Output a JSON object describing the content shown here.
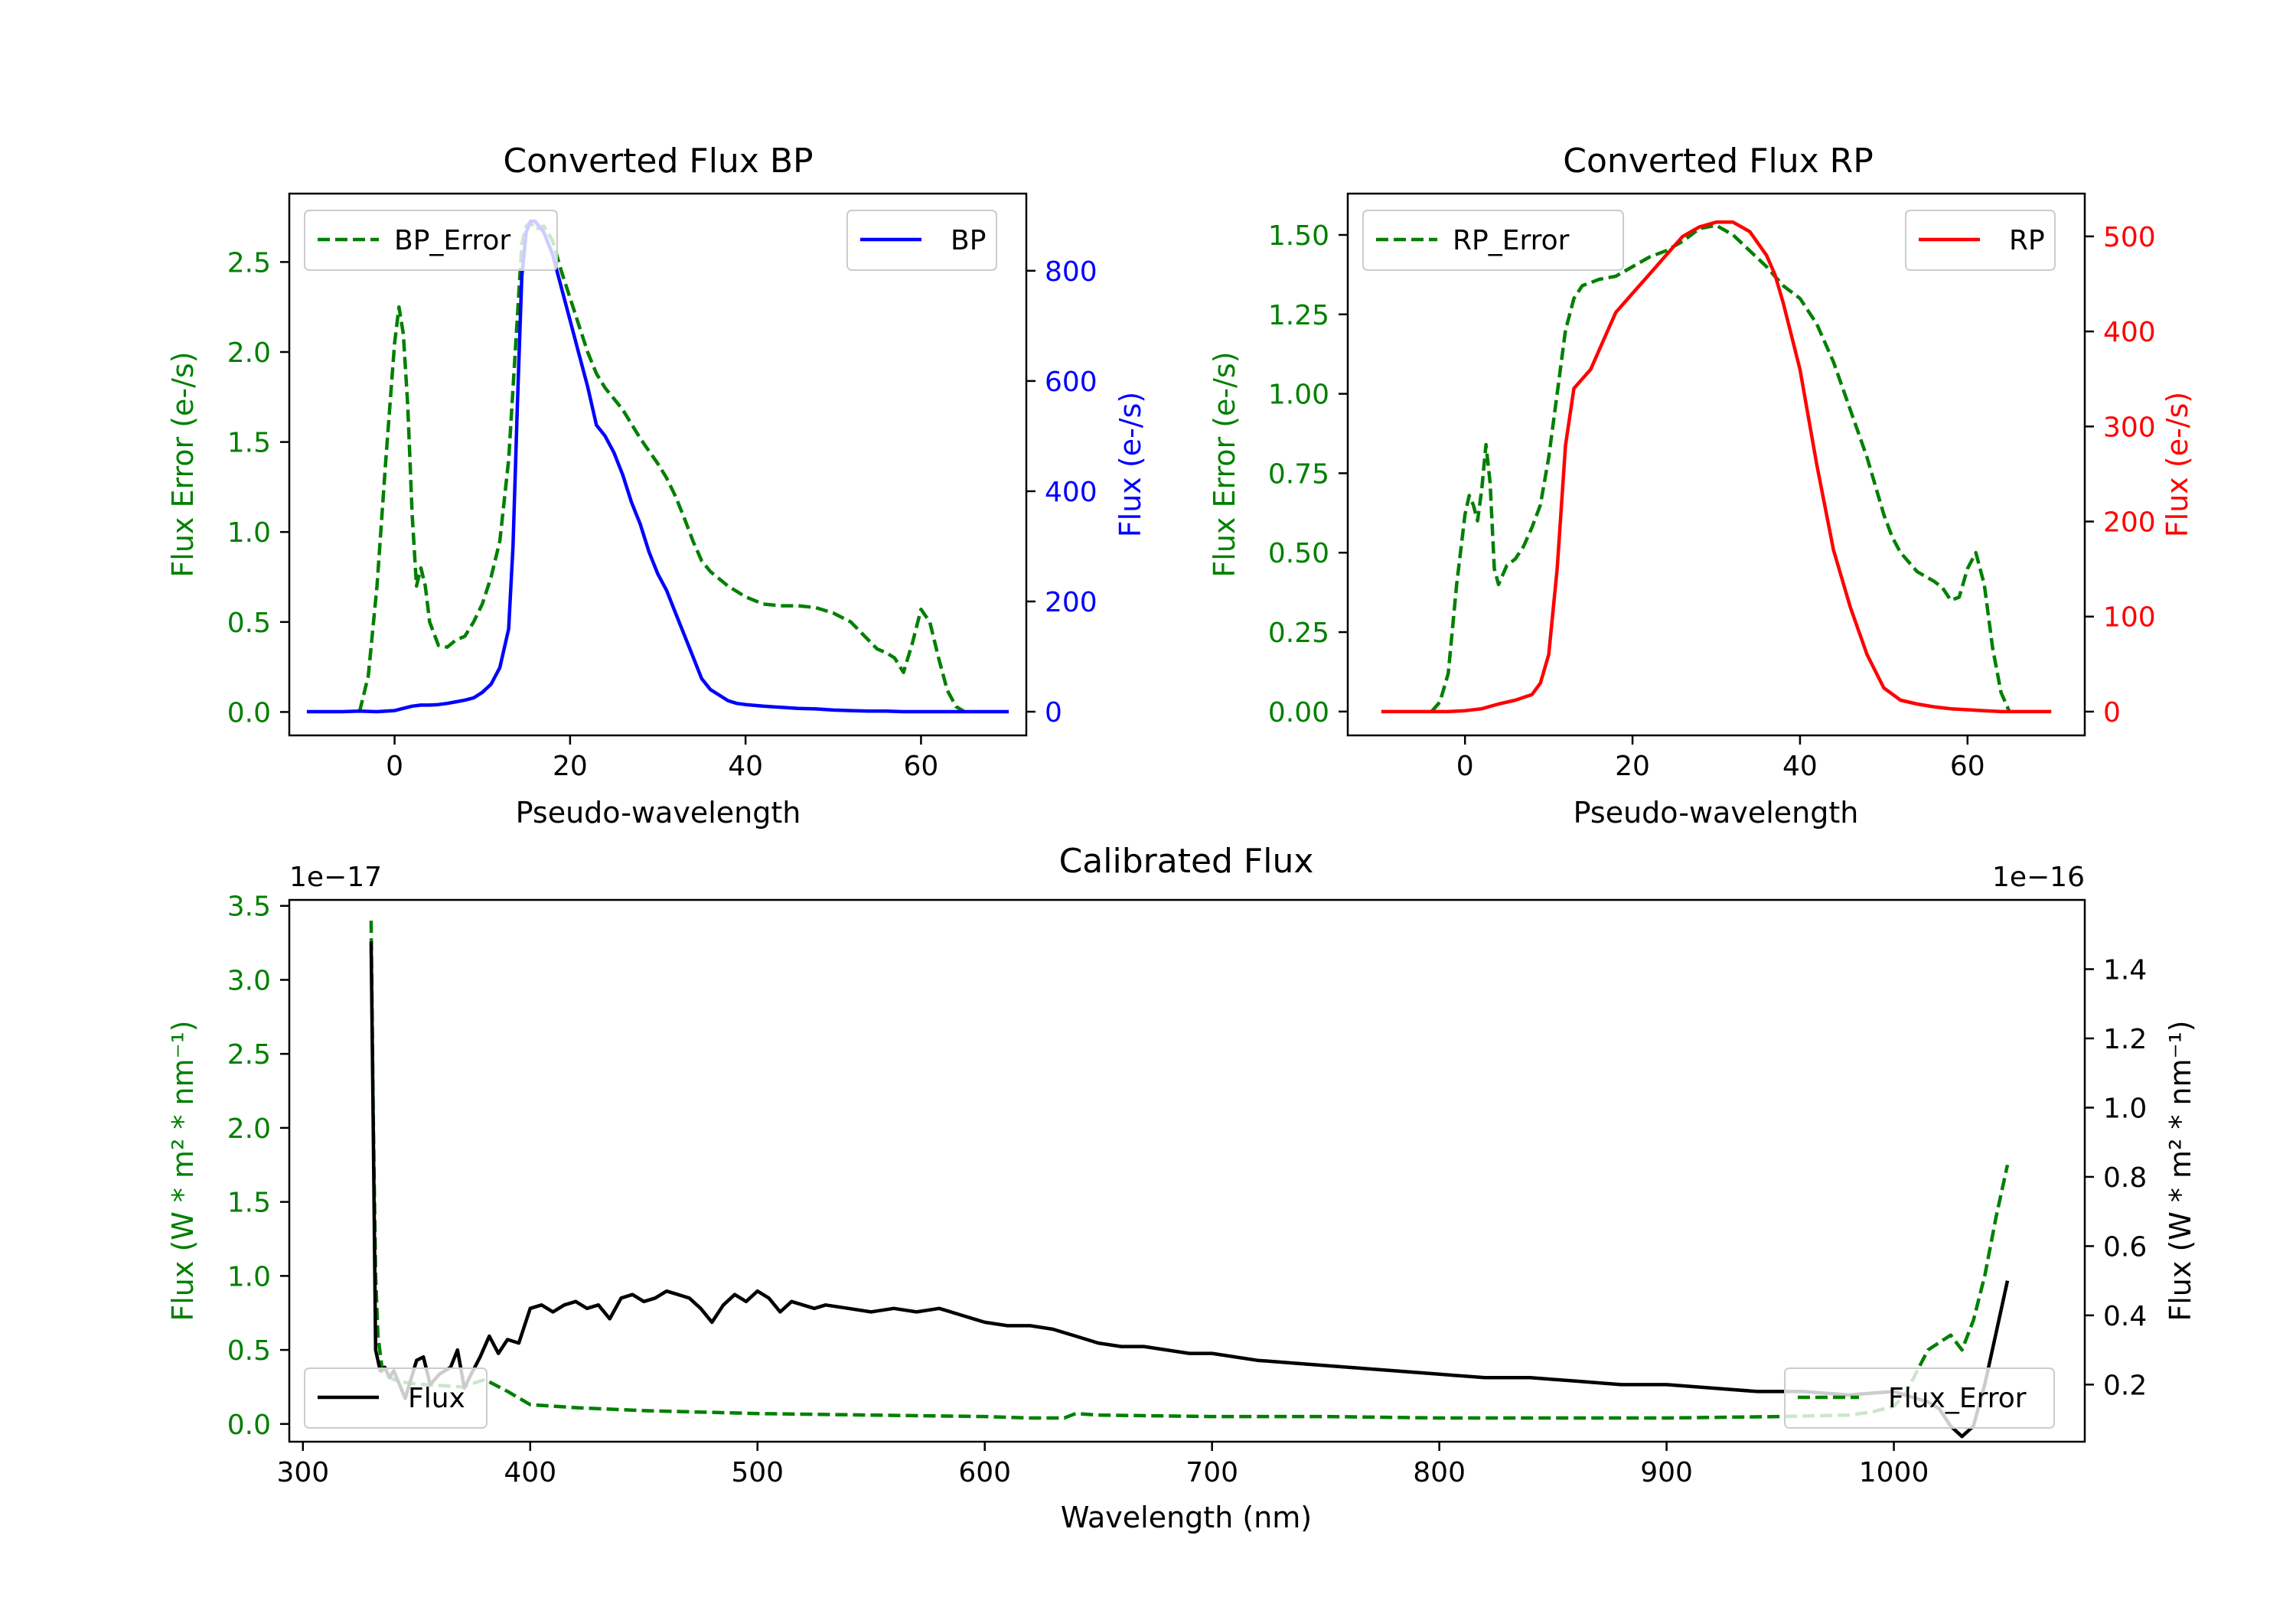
{
  "colors": {
    "error": "#008000",
    "bp": "#0000ff",
    "rp": "#ff0000",
    "flux": "#000000",
    "axis": "#000000",
    "background": "#ffffff"
  },
  "chart_data": [
    {
      "id": "bp",
      "type": "line",
      "title": "Converted Flux BP",
      "xlabel": "Pseudo-wavelength",
      "ylabel_left": "Flux Error (e-/s)",
      "ylabel_right": "Flux (e-/s)",
      "xlim": [
        -12,
        72
      ],
      "ylim_left": [
        -0.13,
        2.88
      ],
      "ylim_right": [
        -43,
        940
      ],
      "xticks": [
        0,
        20,
        40,
        60
      ],
      "xtick_labels": [
        "0",
        "20",
        "40",
        "60"
      ],
      "yticks_left": [
        0,
        0.5,
        1,
        1.5,
        2,
        2.5
      ],
      "ytick_labels_left": [
        "0.0",
        "0.5",
        "1.0",
        "1.5",
        "2.0",
        "2.5"
      ],
      "yticks_right": [
        0,
        200,
        400,
        600,
        800
      ],
      "ytick_labels_right": [
        "0",
        "200",
        "400",
        "600",
        "800"
      ],
      "legend_left": "BP_Error",
      "legend_right": "BP",
      "series": [
        {
          "name": "BP_Error",
          "axis": "left",
          "style": "dashed",
          "color": "#008000",
          "x": [
            -4,
            -3,
            -2,
            -1,
            0,
            0.5,
            1,
            1.5,
            2,
            2.5,
            3,
            3.5,
            4,
            5,
            6,
            7,
            8,
            9,
            10,
            11,
            12,
            13,
            14,
            14.5,
            15,
            15.5,
            16,
            17,
            18,
            19,
            20,
            21,
            22,
            23,
            24,
            25,
            26,
            27,
            28,
            29,
            30,
            31,
            32,
            33,
            34,
            35,
            36,
            38,
            40,
            42,
            44,
            46,
            48,
            50,
            52,
            54,
            55,
            56,
            57,
            58,
            59,
            60,
            61,
            62,
            63,
            64,
            65
          ],
          "y": [
            0,
            0.2,
            0.7,
            1.4,
            2.05,
            2.25,
            2.1,
            1.7,
            1.1,
            0.7,
            0.8,
            0.7,
            0.5,
            0.37,
            0.36,
            0.4,
            0.42,
            0.5,
            0.6,
            0.75,
            0.95,
            1.4,
            2.2,
            2.6,
            2.7,
            2.72,
            2.68,
            2.7,
            2.62,
            2.45,
            2.3,
            2.15,
            2.0,
            1.88,
            1.8,
            1.74,
            1.68,
            1.6,
            1.52,
            1.45,
            1.38,
            1.3,
            1.2,
            1.08,
            0.95,
            0.84,
            0.78,
            0.7,
            0.64,
            0.6,
            0.59,
            0.59,
            0.58,
            0.55,
            0.5,
            0.4,
            0.35,
            0.33,
            0.3,
            0.22,
            0.38,
            0.57,
            0.5,
            0.3,
            0.12,
            0.03,
            0
          ]
        },
        {
          "name": "BP",
          "axis": "right",
          "style": "solid",
          "color": "#0000ff",
          "x": [
            -10,
            -6,
            -4,
            -2,
            0,
            1,
            2,
            3,
            4,
            5,
            6,
            7,
            8,
            9,
            10,
            11,
            12,
            13,
            13.5,
            14,
            14.5,
            15,
            15.5,
            16,
            17,
            18,
            19,
            20,
            21,
            22,
            23,
            24,
            25,
            26,
            27,
            28,
            29,
            30,
            31,
            32,
            33,
            34,
            35,
            36,
            37,
            38,
            39,
            40,
            42,
            44,
            46,
            48,
            50,
            52,
            54,
            56,
            58,
            60,
            62,
            64,
            66,
            68,
            70
          ],
          "y": [
            0,
            0,
            1,
            0,
            2,
            6,
            10,
            12,
            12,
            13,
            15,
            18,
            21,
            25,
            35,
            50,
            80,
            150,
            300,
            560,
            790,
            870,
            890,
            890,
            870,
            830,
            770,
            710,
            650,
            590,
            520,
            500,
            470,
            430,
            380,
            340,
            290,
            250,
            220,
            180,
            140,
            100,
            60,
            40,
            30,
            20,
            15,
            13,
            10,
            8,
            6,
            5,
            3,
            2,
            1,
            1,
            0,
            0,
            0,
            0,
            0,
            0,
            0
          ]
        }
      ]
    },
    {
      "id": "rp",
      "type": "line",
      "title": "Converted Flux RP",
      "xlabel": "Pseudo-wavelength",
      "ylabel_left": "Flux Error (e-/s)",
      "ylabel_right": "Flux (e-/s)",
      "xlim": [
        -14,
        74
      ],
      "ylim_left": [
        -0.075,
        1.63
      ],
      "ylim_right": [
        -25,
        545
      ],
      "xticks": [
        0,
        20,
        40,
        60
      ],
      "xtick_labels": [
        "0",
        "20",
        "40",
        "60"
      ],
      "yticks_left": [
        0,
        0.25,
        0.5,
        0.75,
        1,
        1.25,
        1.5
      ],
      "ytick_labels_left": [
        "0.00",
        "0.25",
        "0.50",
        "0.75",
        "1.00",
        "1.25",
        "1.50"
      ],
      "yticks_right": [
        0,
        100,
        200,
        300,
        400,
        500
      ],
      "ytick_labels_right": [
        "0",
        "100",
        "200",
        "300",
        "400",
        "500"
      ],
      "legend_left": "RP_Error",
      "legend_right": "RP",
      "series": [
        {
          "name": "RP_Error",
          "axis": "left",
          "style": "dashed",
          "color": "#008000",
          "x": [
            -4,
            -3,
            -2,
            -1,
            0,
            0.5,
            1,
            1.5,
            2,
            2.5,
            3,
            3.5,
            4,
            5,
            6,
            7,
            8,
            9,
            10,
            11,
            12,
            13,
            14,
            15,
            16,
            18,
            20,
            22,
            24,
            26,
            28,
            30,
            32,
            34,
            36,
            37,
            38,
            40,
            42,
            44,
            46,
            48,
            50,
            51,
            52,
            54,
            56,
            57,
            58,
            59,
            60,
            61,
            62,
            63,
            64,
            65
          ],
          "y": [
            0,
            0.03,
            0.12,
            0.4,
            0.62,
            0.68,
            0.65,
            0.6,
            0.7,
            0.84,
            0.72,
            0.45,
            0.4,
            0.46,
            0.48,
            0.52,
            0.58,
            0.65,
            0.8,
            1.0,
            1.2,
            1.3,
            1.34,
            1.35,
            1.36,
            1.37,
            1.4,
            1.43,
            1.45,
            1.48,
            1.52,
            1.53,
            1.5,
            1.45,
            1.4,
            1.37,
            1.34,
            1.3,
            1.22,
            1.1,
            0.95,
            0.8,
            0.62,
            0.55,
            0.5,
            0.44,
            0.41,
            0.39,
            0.35,
            0.36,
            0.45,
            0.5,
            0.4,
            0.2,
            0.06,
            0
          ]
        },
        {
          "name": "RP",
          "axis": "right",
          "style": "solid",
          "color": "#ff0000",
          "x": [
            -10,
            -4,
            -2,
            0,
            2,
            4,
            6,
            8,
            9,
            10,
            11,
            12,
            13,
            14,
            15,
            16,
            17,
            18,
            20,
            22,
            24,
            26,
            28,
            30,
            32,
            34,
            36,
            37,
            38,
            40,
            42,
            44,
            46,
            48,
            50,
            52,
            54,
            56,
            58,
            60,
            62,
            64,
            66,
            68,
            70
          ],
          "y": [
            0,
            0,
            0,
            1,
            3,
            8,
            12,
            18,
            30,
            60,
            150,
            280,
            340,
            350,
            360,
            380,
            400,
            420,
            440,
            460,
            480,
            500,
            510,
            515,
            515,
            505,
            480,
            460,
            430,
            360,
            260,
            170,
            110,
            60,
            25,
            12,
            8,
            5,
            3,
            2,
            1,
            0,
            0,
            0,
            0
          ]
        }
      ]
    },
    {
      "id": "cal",
      "type": "line",
      "title": "Calibrated Flux",
      "xlabel": "Wavelength (nm)",
      "ylabel_left": "Flux (W * m² * nm⁻¹)",
      "ylabel_right": "Flux (W * m² * nm⁻¹)",
      "left_offset_label": "1e−17",
      "right_offset_label": "1e−16",
      "xlim": [
        294,
        1084
      ],
      "ylim_left": [
        -0.12,
        3.54
      ],
      "ylim_right": [
        0.035,
        1.6
      ],
      "xticks": [
        300,
        400,
        500,
        600,
        700,
        800,
        900,
        1000
      ],
      "xtick_labels": [
        "300",
        "400",
        "500",
        "600",
        "700",
        "800",
        "900",
        "1000"
      ],
      "yticks_left": [
        0,
        0.5,
        1,
        1.5,
        2,
        2.5,
        3,
        3.5
      ],
      "ytick_labels_left": [
        "0.0",
        "0.5",
        "1.0",
        "1.5",
        "2.0",
        "2.5",
        "3.0",
        "3.5"
      ],
      "yticks_right": [
        0.2,
        0.4,
        0.6,
        0.8,
        1.0,
        1.2,
        1.4
      ],
      "ytick_labels_right": [
        "0.2",
        "0.4",
        "0.6",
        "0.8",
        "1.0",
        "1.2",
        "1.4"
      ],
      "legend_left": "Flux",
      "legend_right": "Flux_Error",
      "series": [
        {
          "name": "Flux_Error",
          "axis": "left",
          "style": "dashed",
          "color": "#008000",
          "x": [
            330,
            331,
            332,
            333,
            335,
            340,
            345,
            350,
            360,
            370,
            380,
            390,
            400,
            420,
            450,
            500,
            550,
            600,
            620,
            635,
            640,
            650,
            700,
            750,
            800,
            850,
            900,
            950,
            980,
            990,
            1000,
            1005,
            1010,
            1015,
            1020,
            1025,
            1030,
            1035,
            1040,
            1045,
            1050
          ],
          "y": [
            3.4,
            2.0,
            1.0,
            0.6,
            0.35,
            0.3,
            0.28,
            0.27,
            0.26,
            0.25,
            0.3,
            0.22,
            0.13,
            0.11,
            0.09,
            0.07,
            0.06,
            0.05,
            0.04,
            0.04,
            0.07,
            0.06,
            0.05,
            0.05,
            0.04,
            0.04,
            0.04,
            0.05,
            0.06,
            0.08,
            0.12,
            0.2,
            0.35,
            0.5,
            0.55,
            0.6,
            0.5,
            0.7,
            1.0,
            1.4,
            1.75
          ]
        },
        {
          "name": "Flux",
          "axis": "right",
          "style": "solid",
          "color": "#000000",
          "x": [
            330,
            331,
            332,
            334,
            336,
            338,
            340,
            345,
            350,
            353,
            356,
            360,
            365,
            368,
            371,
            374,
            378,
            382,
            386,
            390,
            395,
            400,
            405,
            410,
            415,
            420,
            425,
            430,
            435,
            440,
            445,
            450,
            455,
            460,
            465,
            470,
            475,
            480,
            485,
            490,
            495,
            500,
            505,
            510,
            515,
            520,
            525,
            530,
            540,
            550,
            560,
            570,
            580,
            590,
            600,
            610,
            620,
            630,
            640,
            650,
            660,
            670,
            680,
            690,
            700,
            720,
            740,
            760,
            780,
            800,
            820,
            840,
            860,
            880,
            900,
            920,
            940,
            960,
            980,
            1000,
            1010,
            1015,
            1020,
            1025,
            1030,
            1035,
            1040,
            1045,
            1050
          ],
          "y": [
            1.48,
            0.9,
            0.3,
            0.24,
            0.25,
            0.22,
            0.24,
            0.16,
            0.27,
            0.28,
            0.2,
            0.23,
            0.25,
            0.3,
            0.19,
            0.23,
            0.28,
            0.34,
            0.29,
            0.33,
            0.32,
            0.42,
            0.43,
            0.41,
            0.43,
            0.44,
            0.42,
            0.43,
            0.39,
            0.45,
            0.46,
            0.44,
            0.45,
            0.47,
            0.46,
            0.45,
            0.42,
            0.38,
            0.43,
            0.46,
            0.44,
            0.47,
            0.45,
            0.41,
            0.44,
            0.43,
            0.42,
            0.43,
            0.42,
            0.41,
            0.42,
            0.41,
            0.42,
            0.4,
            0.38,
            0.37,
            0.37,
            0.36,
            0.34,
            0.32,
            0.31,
            0.31,
            0.3,
            0.29,
            0.29,
            0.27,
            0.26,
            0.25,
            0.24,
            0.23,
            0.22,
            0.22,
            0.21,
            0.2,
            0.2,
            0.19,
            0.18,
            0.18,
            0.17,
            0.18,
            0.16,
            0.15,
            0.13,
            0.08,
            0.05,
            0.08,
            0.2,
            0.35,
            0.5
          ]
        }
      ]
    }
  ]
}
